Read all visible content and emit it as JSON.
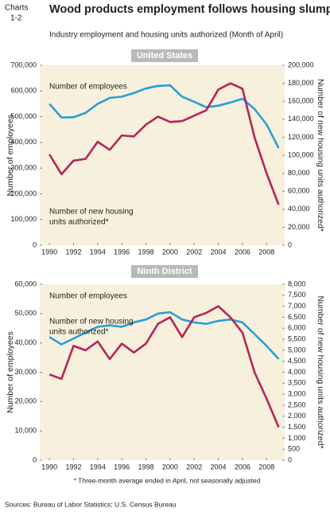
{
  "header": {
    "label": [
      "Charts",
      "1-2"
    ],
    "title": "Wood products employment follows housing slump",
    "subtitle": "Industry employment and housing units authorized (Month of April)"
  },
  "footnote": "* Three-month average ended in April, not seasonally adjusted",
  "source": "Sources: Bureau of Labor Statistics; U.S. Census Bureau",
  "chart_data": [
    {
      "type": "line",
      "title": "United States",
      "x": [
        1990,
        1991,
        1992,
        1993,
        1994,
        1995,
        1996,
        1997,
        1998,
        1999,
        2000,
        2001,
        2002,
        2003,
        2004,
        2005,
        2006,
        2007,
        2008,
        2009
      ],
      "xlim": [
        1989.2,
        2009.5
      ],
      "xticks": [
        1990,
        1992,
        1994,
        1996,
        1998,
        2000,
        2002,
        2004,
        2006,
        2008
      ],
      "y_label": "Number of employees",
      "y2_label": "Number of new housing units authorized*",
      "ylim": [
        0,
        700000
      ],
      "yticks": [
        0,
        {
          "value": 100000,
          "label": "100,000"
        },
        {
          "value": 200000,
          "label": "200,000"
        },
        {
          "value": 300000,
          "label": "300,000"
        },
        {
          "value": 400000,
          "label": "400,000"
        },
        {
          "value": 500000,
          "label": "500,000"
        },
        {
          "value": 600000,
          "label": "600,000"
        },
        {
          "value": 700000,
          "label": "700,000"
        }
      ],
      "y2lim": [
        0,
        200000
      ],
      "y2ticks": [
        0,
        {
          "value": 20000,
          "label": "20,000"
        },
        {
          "value": 40000,
          "label": "40,000"
        },
        {
          "value": 60000,
          "label": "60,000"
        },
        {
          "value": 80000,
          "label": "80,000"
        },
        {
          "value": 100000,
          "label": "100,000"
        },
        {
          "value": 120000,
          "label": "120,000"
        },
        {
          "value": 140000,
          "label": "140,000"
        },
        {
          "value": 160000,
          "label": "160,000"
        },
        {
          "value": 180000,
          "label": "180,000"
        },
        {
          "value": 200000,
          "label": "200,000"
        }
      ],
      "series": [
        {
          "name": [
            "Number of employees"
          ],
          "color": "#2a9fd6",
          "axis": "y",
          "values": [
            550000,
            497000,
            498000,
            515000,
            550000,
            573000,
            578000,
            592000,
            610000,
            620000,
            622000,
            578000,
            558000,
            537000,
            543000,
            555000,
            570000,
            530000,
            470000,
            378000
          ]
        },
        {
          "name": [
            "Number of new housing",
            "units authorized*"
          ],
          "color": "#b5245b",
          "axis": "y2",
          "values": [
            101000,
            79000,
            94000,
            96000,
            115000,
            106000,
            122000,
            121000,
            134000,
            143000,
            137000,
            138000,
            144000,
            150000,
            173000,
            180000,
            174000,
            120000,
            80000,
            45000
          ]
        }
      ]
    },
    {
      "type": "line",
      "title": "Ninth District",
      "x": [
        1990,
        1991,
        1992,
        1993,
        1994,
        1995,
        1996,
        1997,
        1998,
        1999,
        2000,
        2001,
        2002,
        2003,
        2004,
        2005,
        2006,
        2007,
        2008,
        2009
      ],
      "xlim": [
        1989.2,
        2009.5
      ],
      "xticks": [
        1990,
        1992,
        1994,
        1996,
        1998,
        2000,
        2002,
        2004,
        2006,
        2008
      ],
      "y_label": "Number of employees",
      "y2_label": "Number of new housing units authorized*",
      "ylim": [
        0,
        60000
      ],
      "yticks": [
        0,
        {
          "value": 10000,
          "label": "10,000"
        },
        {
          "value": 20000,
          "label": "20,000"
        },
        {
          "value": 30000,
          "label": "30,000"
        },
        {
          "value": 40000,
          "label": "40,000"
        },
        {
          "value": 50000,
          "label": "50,000"
        },
        {
          "value": 60000,
          "label": "60,000"
        }
      ],
      "y2lim": [
        0,
        8000
      ],
      "y2ticks": [
        0,
        {
          "value": 500,
          "label": "500"
        },
        {
          "value": 1500,
          "label": "1,500"
        },
        {
          "value": 1000,
          "label": "1,000"
        },
        {
          "value": 2000,
          "label": "2,000"
        },
        {
          "value": 2500,
          "label": "2,500"
        },
        {
          "value": 3000,
          "label": "3,000"
        },
        {
          "value": 3500,
          "label": "3,500"
        },
        {
          "value": 4000,
          "label": "4,000"
        },
        {
          "value": 4500,
          "label": "4,500"
        },
        {
          "value": 5000,
          "label": "5,000"
        },
        {
          "value": 5500,
          "label": "5,500"
        },
        {
          "value": 6000,
          "label": "6,000"
        },
        {
          "value": 6500,
          "label": "6,500"
        },
        {
          "value": 7000,
          "label": "7,000"
        },
        {
          "value": 7500,
          "label": "7,500"
        },
        {
          "value": 8000,
          "label": "8,000"
        }
      ],
      "series": [
        {
          "name": [
            "Number of employees"
          ],
          "color": "#2a9fd6",
          "axis": "y",
          "values": [
            42000,
            39500,
            41500,
            43500,
            45500,
            46000,
            45500,
            47000,
            48000,
            50000,
            50500,
            48000,
            47000,
            46500,
            47500,
            48000,
            47000,
            43000,
            39000,
            34500
          ]
        },
        {
          "name": [
            "Number of new housing",
            "units authorized*"
          ],
          "color": "#b5245b",
          "axis": "y2",
          "values": [
            3900,
            3700,
            5200,
            5000,
            5400,
            4600,
            5300,
            4900,
            5300,
            6200,
            6500,
            5600,
            6500,
            6700,
            7000,
            6500,
            5800,
            4000,
            2800,
            1500
          ]
        }
      ]
    }
  ]
}
